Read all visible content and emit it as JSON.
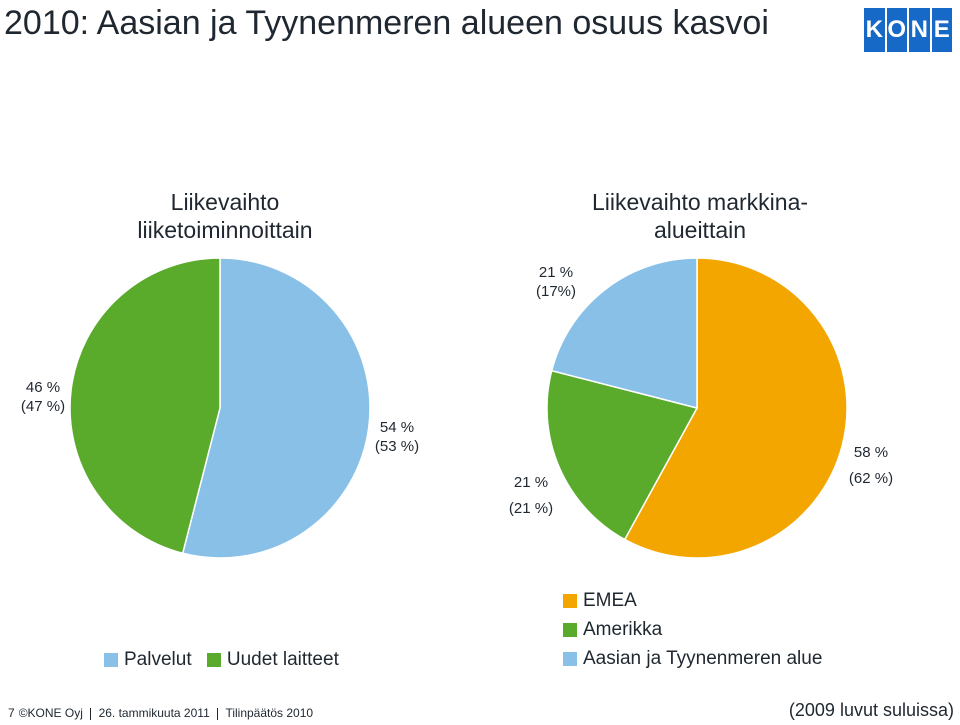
{
  "title": "2010: Aasian ja Tyynenmeren alueen osuus kasvoi",
  "logo": {
    "letters": [
      "K",
      "O",
      "N",
      "E"
    ]
  },
  "chart_data": [
    {
      "type": "pie",
      "title": "Liikevaihto liiketoiminnoittain",
      "slices": [
        {
          "name": "Palvelut",
          "value": 54,
          "label": "54 %",
          "prev": "(53 %)",
          "color": "#88c0e8"
        },
        {
          "name": "Uudet laitteet",
          "value": 46,
          "label": "46 %",
          "prev": "(47 %)",
          "color": "#5aaa2c"
        }
      ],
      "legend": [
        "Palvelut",
        "Uudet laitteet"
      ]
    },
    {
      "type": "pie",
      "title": "Liikevaihto markkina-alueittain",
      "slices": [
        {
          "name": "EMEA",
          "value": 58,
          "label": "58 %",
          "prev": "(62 %)",
          "color": "#f4a600"
        },
        {
          "name": "Amerikka",
          "value": 21,
          "label": "21 %",
          "prev": "(21 %)",
          "color": "#5aaa2c"
        },
        {
          "name": "Aasian ja Tyynenmeren alue",
          "value": 21,
          "label": "21 %",
          "prev": "(17%)",
          "color": "#88c0e8"
        }
      ],
      "legend": [
        "EMEA",
        "Amerikka",
        "Aasian ja Tyynenmeren alue"
      ]
    }
  ],
  "footer": {
    "page": "7",
    "copyright": "©KONE Oyj",
    "date": "26. tammikuuta 2011",
    "event": "Tilinpäätös 2010"
  },
  "note": "(2009 luvut suluissa)"
}
